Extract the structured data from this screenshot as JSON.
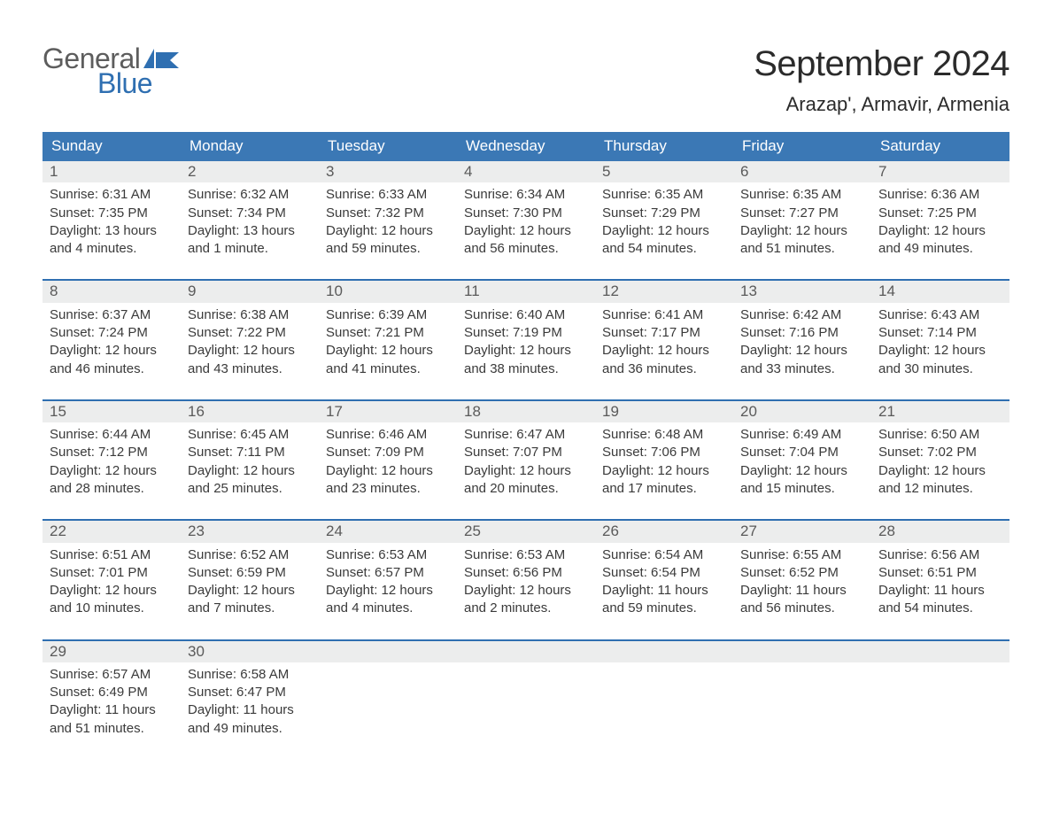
{
  "brand": {
    "word1": "General",
    "word2": "Blue"
  },
  "title": "September 2024",
  "location": "Arazap', Armavir, Armenia",
  "colors": {
    "header_blue": "#3b78b5",
    "accent_blue": "#2f6fb1",
    "row_bg": "#eceded",
    "text": "#3a3a3a",
    "page_bg": "#ffffff",
    "logo_gray": "#5d5d5d",
    "logo_blue": "#2f6fb1"
  },
  "days_of_week": [
    "Sunday",
    "Monday",
    "Tuesday",
    "Wednesday",
    "Thursday",
    "Friday",
    "Saturday"
  ],
  "calendar": {
    "type": "table",
    "columns": 7,
    "cell_font_size_pt": 11,
    "header_font_size_pt": 13
  },
  "weeks": [
    [
      {
        "n": "1",
        "sunrise": "Sunrise: 6:31 AM",
        "sunset": "Sunset: 7:35 PM",
        "day1": "Daylight: 13 hours",
        "day2": "and 4 minutes."
      },
      {
        "n": "2",
        "sunrise": "Sunrise: 6:32 AM",
        "sunset": "Sunset: 7:34 PM",
        "day1": "Daylight: 13 hours",
        "day2": "and 1 minute."
      },
      {
        "n": "3",
        "sunrise": "Sunrise: 6:33 AM",
        "sunset": "Sunset: 7:32 PM",
        "day1": "Daylight: 12 hours",
        "day2": "and 59 minutes."
      },
      {
        "n": "4",
        "sunrise": "Sunrise: 6:34 AM",
        "sunset": "Sunset: 7:30 PM",
        "day1": "Daylight: 12 hours",
        "day2": "and 56 minutes."
      },
      {
        "n": "5",
        "sunrise": "Sunrise: 6:35 AM",
        "sunset": "Sunset: 7:29 PM",
        "day1": "Daylight: 12 hours",
        "day2": "and 54 minutes."
      },
      {
        "n": "6",
        "sunrise": "Sunrise: 6:35 AM",
        "sunset": "Sunset: 7:27 PM",
        "day1": "Daylight: 12 hours",
        "day2": "and 51 minutes."
      },
      {
        "n": "7",
        "sunrise": "Sunrise: 6:36 AM",
        "sunset": "Sunset: 7:25 PM",
        "day1": "Daylight: 12 hours",
        "day2": "and 49 minutes."
      }
    ],
    [
      {
        "n": "8",
        "sunrise": "Sunrise: 6:37 AM",
        "sunset": "Sunset: 7:24 PM",
        "day1": "Daylight: 12 hours",
        "day2": "and 46 minutes."
      },
      {
        "n": "9",
        "sunrise": "Sunrise: 6:38 AM",
        "sunset": "Sunset: 7:22 PM",
        "day1": "Daylight: 12 hours",
        "day2": "and 43 minutes."
      },
      {
        "n": "10",
        "sunrise": "Sunrise: 6:39 AM",
        "sunset": "Sunset: 7:21 PM",
        "day1": "Daylight: 12 hours",
        "day2": "and 41 minutes."
      },
      {
        "n": "11",
        "sunrise": "Sunrise: 6:40 AM",
        "sunset": "Sunset: 7:19 PM",
        "day1": "Daylight: 12 hours",
        "day2": "and 38 minutes."
      },
      {
        "n": "12",
        "sunrise": "Sunrise: 6:41 AM",
        "sunset": "Sunset: 7:17 PM",
        "day1": "Daylight: 12 hours",
        "day2": "and 36 minutes."
      },
      {
        "n": "13",
        "sunrise": "Sunrise: 6:42 AM",
        "sunset": "Sunset: 7:16 PM",
        "day1": "Daylight: 12 hours",
        "day2": "and 33 minutes."
      },
      {
        "n": "14",
        "sunrise": "Sunrise: 6:43 AM",
        "sunset": "Sunset: 7:14 PM",
        "day1": "Daylight: 12 hours",
        "day2": "and 30 minutes."
      }
    ],
    [
      {
        "n": "15",
        "sunrise": "Sunrise: 6:44 AM",
        "sunset": "Sunset: 7:12 PM",
        "day1": "Daylight: 12 hours",
        "day2": "and 28 minutes."
      },
      {
        "n": "16",
        "sunrise": "Sunrise: 6:45 AM",
        "sunset": "Sunset: 7:11 PM",
        "day1": "Daylight: 12 hours",
        "day2": "and 25 minutes."
      },
      {
        "n": "17",
        "sunrise": "Sunrise: 6:46 AM",
        "sunset": "Sunset: 7:09 PM",
        "day1": "Daylight: 12 hours",
        "day2": "and 23 minutes."
      },
      {
        "n": "18",
        "sunrise": "Sunrise: 6:47 AM",
        "sunset": "Sunset: 7:07 PM",
        "day1": "Daylight: 12 hours",
        "day2": "and 20 minutes."
      },
      {
        "n": "19",
        "sunrise": "Sunrise: 6:48 AM",
        "sunset": "Sunset: 7:06 PM",
        "day1": "Daylight: 12 hours",
        "day2": "and 17 minutes."
      },
      {
        "n": "20",
        "sunrise": "Sunrise: 6:49 AM",
        "sunset": "Sunset: 7:04 PM",
        "day1": "Daylight: 12 hours",
        "day2": "and 15 minutes."
      },
      {
        "n": "21",
        "sunrise": "Sunrise: 6:50 AM",
        "sunset": "Sunset: 7:02 PM",
        "day1": "Daylight: 12 hours",
        "day2": "and 12 minutes."
      }
    ],
    [
      {
        "n": "22",
        "sunrise": "Sunrise: 6:51 AM",
        "sunset": "Sunset: 7:01 PM",
        "day1": "Daylight: 12 hours",
        "day2": "and 10 minutes."
      },
      {
        "n": "23",
        "sunrise": "Sunrise: 6:52 AM",
        "sunset": "Sunset: 6:59 PM",
        "day1": "Daylight: 12 hours",
        "day2": "and 7 minutes."
      },
      {
        "n": "24",
        "sunrise": "Sunrise: 6:53 AM",
        "sunset": "Sunset: 6:57 PM",
        "day1": "Daylight: 12 hours",
        "day2": "and 4 minutes."
      },
      {
        "n": "25",
        "sunrise": "Sunrise: 6:53 AM",
        "sunset": "Sunset: 6:56 PM",
        "day1": "Daylight: 12 hours",
        "day2": "and 2 minutes."
      },
      {
        "n": "26",
        "sunrise": "Sunrise: 6:54 AM",
        "sunset": "Sunset: 6:54 PM",
        "day1": "Daylight: 11 hours",
        "day2": "and 59 minutes."
      },
      {
        "n": "27",
        "sunrise": "Sunrise: 6:55 AM",
        "sunset": "Sunset: 6:52 PM",
        "day1": "Daylight: 11 hours",
        "day2": "and 56 minutes."
      },
      {
        "n": "28",
        "sunrise": "Sunrise: 6:56 AM",
        "sunset": "Sunset: 6:51 PM",
        "day1": "Daylight: 11 hours",
        "day2": "and 54 minutes."
      }
    ],
    [
      {
        "n": "29",
        "sunrise": "Sunrise: 6:57 AM",
        "sunset": "Sunset: 6:49 PM",
        "day1": "Daylight: 11 hours",
        "day2": "and 51 minutes."
      },
      {
        "n": "30",
        "sunrise": "Sunrise: 6:58 AM",
        "sunset": "Sunset: 6:47 PM",
        "day1": "Daylight: 11 hours",
        "day2": "and 49 minutes."
      },
      null,
      null,
      null,
      null,
      null
    ]
  ]
}
